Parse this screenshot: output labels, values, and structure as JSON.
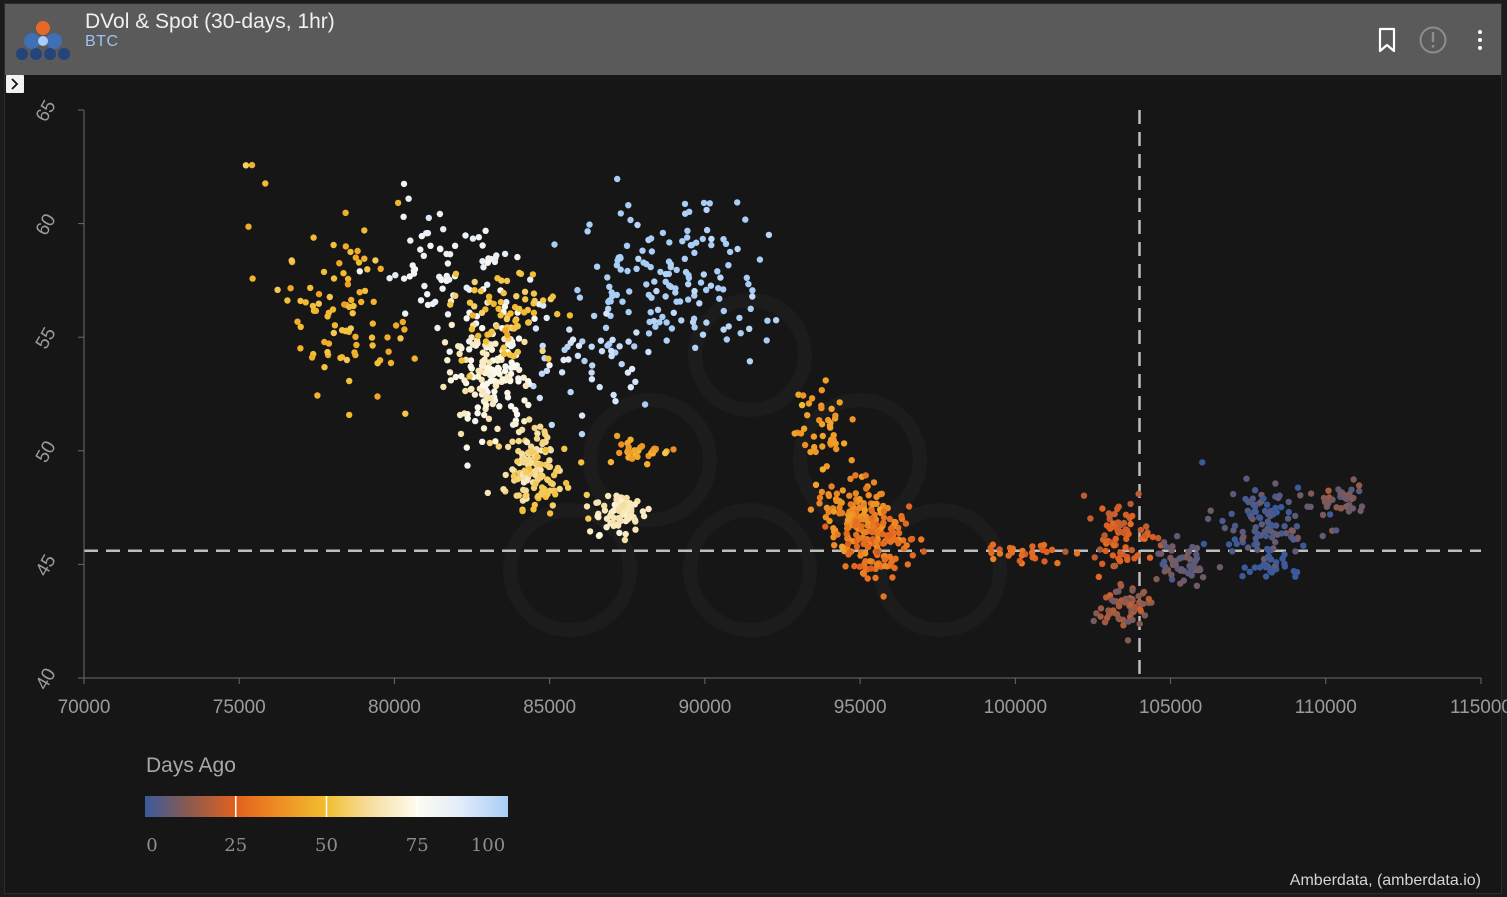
{
  "header": {
    "title": "DVol & Spot (30-days, 1hr)",
    "subtitle": "BTC",
    "icons": [
      "bookmark-icon",
      "info-icon",
      "more-vertical-icon"
    ]
  },
  "colors": {
    "header_bg": "#5a5a5a",
    "chart_bg": "#161616",
    "subtitle": "#9cc2f2",
    "reference_line": "#bdbdbd"
  },
  "credit": "Amberdata, (amberdata.io)",
  "chart_data": {
    "type": "scatter",
    "title": "",
    "xlabel": "",
    "ylabel": "",
    "xlim": [
      70000,
      115000
    ],
    "ylim": [
      40,
      65
    ],
    "xticks": [
      70000,
      75000,
      80000,
      85000,
      90000,
      95000,
      100000,
      105000,
      110000,
      115000
    ],
    "yticks": [
      40,
      45,
      50,
      55,
      60,
      65
    ],
    "grid": false,
    "reference_lines": {
      "x": 104000,
      "y": 45.6
    },
    "colorbar": {
      "title": "Days Ago",
      "ticks": [
        0,
        25,
        50,
        75,
        100
      ],
      "range": [
        0,
        100
      ],
      "stops": [
        {
          "v": 0,
          "color": "#3a5a9c"
        },
        {
          "v": 12,
          "color": "#8a5a4e"
        },
        {
          "v": 25,
          "color": "#e2601e"
        },
        {
          "v": 37,
          "color": "#ee8e24"
        },
        {
          "v": 50,
          "color": "#f2be30"
        },
        {
          "v": 62,
          "color": "#f6dea0"
        },
        {
          "v": 75,
          "color": "#fdfbf0"
        },
        {
          "v": 87,
          "color": "#e2ecfa"
        },
        {
          "v": 100,
          "color": "#a8cdf6"
        }
      ]
    },
    "clusters": [
      {
        "days": 100,
        "cx": 89000,
        "cy": 57.5,
        "sx": 2500,
        "sy": 2.8,
        "n": 150
      },
      {
        "days": 92,
        "cx": 86000,
        "cy": 54.0,
        "sx": 1500,
        "sy": 2.0,
        "n": 45
      },
      {
        "days": 82,
        "cx": 81700,
        "cy": 58.0,
        "sx": 1900,
        "sy": 2.3,
        "n": 75
      },
      {
        "days": 76,
        "cx": 83200,
        "cy": 53.5,
        "sx": 1200,
        "sy": 2.3,
        "n": 95
      },
      {
        "days": 68,
        "cx": 82800,
        "cy": 53.5,
        "sx": 1100,
        "sy": 1.8,
        "n": 80
      },
      {
        "days": 62,
        "cx": 84300,
        "cy": 49.5,
        "sx": 650,
        "sy": 1.5,
        "n": 85
      },
      {
        "days": 66,
        "cx": 87300,
        "cy": 47.3,
        "sx": 700,
        "sy": 0.8,
        "n": 75
      },
      {
        "days": 55,
        "cx": 84800,
        "cy": 48.7,
        "sx": 850,
        "sy": 1.3,
        "n": 55
      },
      {
        "days": 52,
        "cx": 83600,
        "cy": 56.0,
        "sx": 1300,
        "sy": 1.9,
        "n": 70
      },
      {
        "days": 48,
        "cx": 78500,
        "cy": 56.0,
        "sx": 1700,
        "sy": 3.0,
        "n": 90
      },
      {
        "days": 50,
        "cx": 75200,
        "cy": 61.5,
        "sx": 300,
        "sy": 1.3,
        "n": 4
      },
      {
        "days": 44,
        "cx": 87800,
        "cy": 50.0,
        "sx": 1000,
        "sy": 0.6,
        "n": 30
      },
      {
        "days": 40,
        "cx": 93700,
        "cy": 51.0,
        "sx": 1000,
        "sy": 1.4,
        "n": 45
      },
      {
        "days": 36,
        "cx": 94800,
        "cy": 47.2,
        "sx": 1000,
        "sy": 1.2,
        "n": 120
      },
      {
        "days": 30,
        "cx": 95700,
        "cy": 45.8,
        "sx": 1000,
        "sy": 1.2,
        "n": 110
      },
      {
        "days": 27,
        "cx": 100200,
        "cy": 45.5,
        "sx": 1200,
        "sy": 0.4,
        "n": 28
      },
      {
        "days": 23,
        "cx": 103300,
        "cy": 46.3,
        "sx": 900,
        "sy": 1.3,
        "n": 75
      },
      {
        "days": 14,
        "cx": 103600,
        "cy": 43.2,
        "sx": 700,
        "sy": 0.9,
        "n": 65
      },
      {
        "days": 6,
        "cx": 105400,
        "cy": 45.0,
        "sx": 800,
        "sy": 0.8,
        "n": 55
      },
      {
        "days": 3,
        "cx": 108000,
        "cy": 47.0,
        "sx": 1400,
        "sy": 1.3,
        "n": 100
      },
      {
        "days": 1,
        "cx": 108200,
        "cy": 45.0,
        "sx": 700,
        "sy": 0.5,
        "n": 35
      },
      {
        "days": 9,
        "cx": 110500,
        "cy": 47.8,
        "sx": 700,
        "sy": 0.9,
        "n": 35
      }
    ]
  }
}
